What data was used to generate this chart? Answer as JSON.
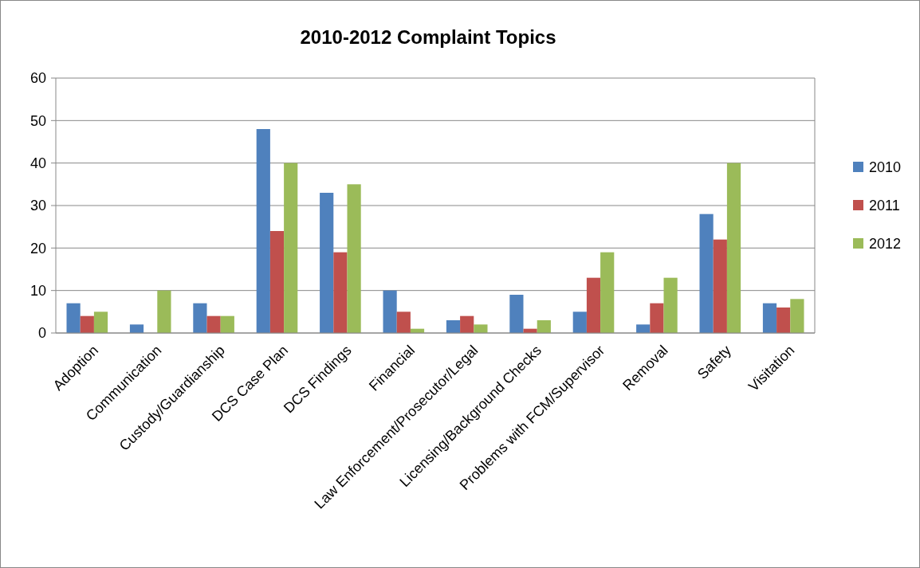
{
  "chart_data": {
    "type": "bar",
    "title": "2010-2012 Complaint Topics",
    "categories": [
      "Adoption",
      "Communication",
      "Custody/Guardianship",
      "DCS Case Plan",
      "DCS Findings",
      "Financial",
      "Law Enforcement/Prosecutor/Legal",
      "Licensing/Background Checks",
      "Problems with FCM/Supervisor",
      "Removal",
      "Safety",
      "Visitation"
    ],
    "series": [
      {
        "name": "2010",
        "color": "#4f81bd",
        "values": [
          7,
          2,
          7,
          48,
          33,
          10,
          3,
          9,
          5,
          2,
          28,
          7
        ]
      },
      {
        "name": "2011",
        "color": "#c0504d",
        "values": [
          4,
          0,
          4,
          24,
          19,
          5,
          4,
          1,
          13,
          7,
          22,
          6
        ]
      },
      {
        "name": "2012",
        "color": "#9bbb59",
        "values": [
          5,
          10,
          4,
          40,
          35,
          1,
          2,
          3,
          19,
          13,
          40,
          8
        ]
      }
    ],
    "ylim": [
      0,
      60
    ],
    "yticks": [
      0,
      10,
      20,
      30,
      40,
      50,
      60
    ],
    "grid": "y",
    "legend": "right"
  }
}
